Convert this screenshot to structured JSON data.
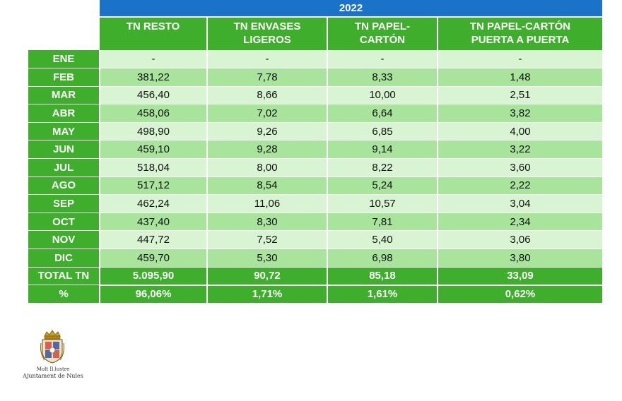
{
  "year": "2022",
  "columns": [
    "TN RESTO",
    "TN ENVASES\nLIGEROS",
    "TN PAPEL-\nCARTÓN",
    "TN PAPEL-CARTÓN\nPUERTA A PUERTA"
  ],
  "rows": [
    {
      "label": "ENE",
      "values": [
        "-",
        "-",
        "-",
        "-"
      ]
    },
    {
      "label": "FEB",
      "values": [
        "381,22",
        "7,78",
        "8,33",
        "1,48"
      ]
    },
    {
      "label": "MAR",
      "values": [
        "456,40",
        "8,66",
        "10,00",
        "2,51"
      ]
    },
    {
      "label": "ABR",
      "values": [
        "458,06",
        "7,02",
        "6,64",
        "3,82"
      ]
    },
    {
      "label": "MAY",
      "values": [
        "498,90",
        "9,26",
        "6,85",
        "4,00"
      ]
    },
    {
      "label": "JUN",
      "values": [
        "459,10",
        "9,28",
        "9,14",
        "3,22"
      ]
    },
    {
      "label": "JUL",
      "values": [
        "518,04",
        "8,00",
        "8,22",
        "3,60"
      ]
    },
    {
      "label": "AGO",
      "values": [
        "517,12",
        "8,54",
        "5,24",
        "2,22"
      ]
    },
    {
      "label": "SEP",
      "values": [
        "462,24",
        "11,06",
        "10,57",
        "3,04"
      ]
    },
    {
      "label": "OCT",
      "values": [
        "437,40",
        "8,30",
        "7,81",
        "2,34"
      ]
    },
    {
      "label": "NOV",
      "values": [
        "447,72",
        "7,52",
        "5,40",
        "3,06"
      ]
    },
    {
      "label": "DIC",
      "values": [
        "459,70",
        "5,30",
        "6,98",
        "3,80"
      ]
    }
  ],
  "total": {
    "label": "TOTAL TN",
    "values": [
      "5.095,90",
      "90,72",
      "85,18",
      "33,09"
    ]
  },
  "percent": {
    "label": "%",
    "values": [
      "96,06%",
      "1,71%",
      "1,61%",
      "0,62%"
    ]
  },
  "logo": {
    "line1": "Molt Il.lustre",
    "line2": "Ajuntament de Nules",
    "icon": "coat-of-arms-icon"
  },
  "colors": {
    "header_blue": "#1a72c9",
    "green": "#3fae2d",
    "row_light": "#d8f4d2",
    "row_dark": "#a8e49c"
  }
}
